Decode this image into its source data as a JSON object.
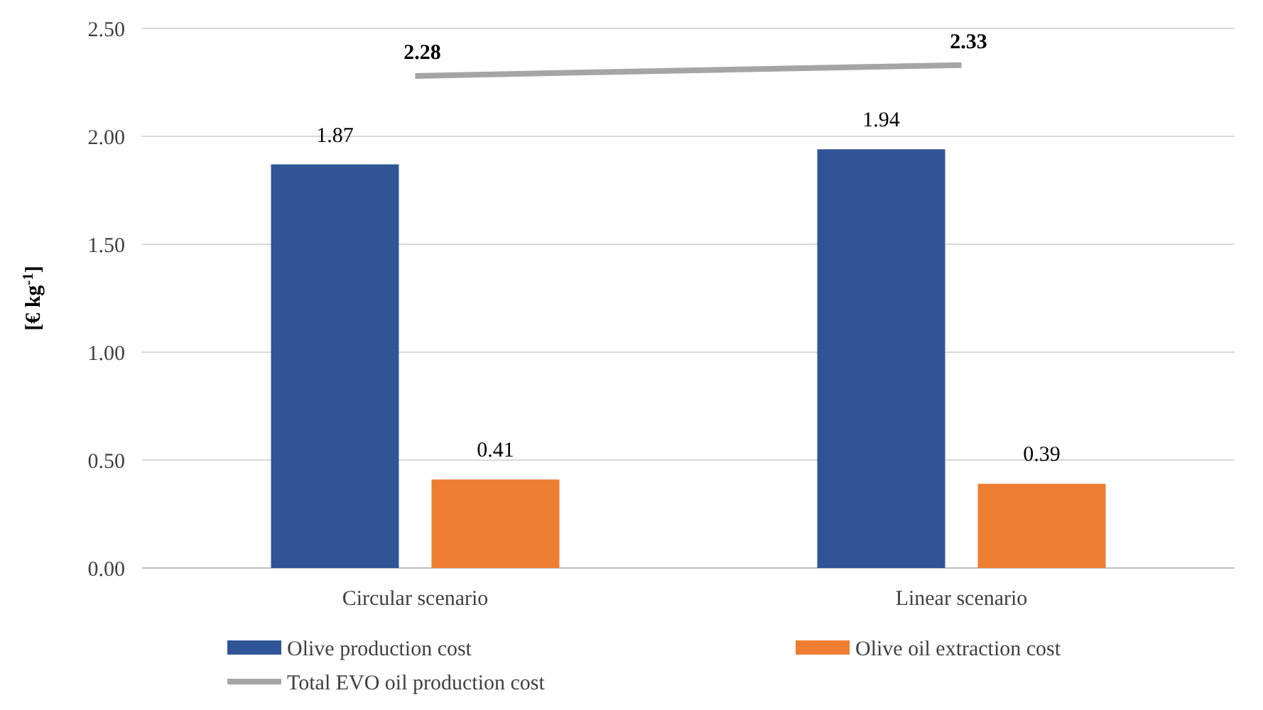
{
  "chart_data": {
    "type": "bar",
    "ylabel": "[€ kg$^{-1}$]",
    "categories": [
      "Circular scenario",
      "Linear scenario"
    ],
    "series": [
      {
        "name": "Olive production cost",
        "color": "#2f5597",
        "values": [
          1.87,
          1.94
        ]
      },
      {
        "name": "Olive oil extraction cost",
        "color": "#ed7d31",
        "values": [
          0.41,
          0.39
        ]
      },
      {
        "name": "Total EVO oil production cost",
        "type": "line",
        "color": "#a5a5a5",
        "values": [
          2.28,
          2.33
        ]
      }
    ],
    "ylim": [
      0,
      2.5
    ],
    "yticks": [
      {
        "value": 0,
        "label": "0.00"
      },
      {
        "value": 0.5,
        "label": "0.50"
      },
      {
        "value": 1,
        "label": "1.00"
      },
      {
        "value": 1.5,
        "label": "1.50"
      },
      {
        "value": 2,
        "label": "2.00"
      },
      {
        "value": 2.5,
        "label": "2.50"
      }
    ],
    "grid": "y",
    "legend": "bottom",
    "data_labels": true
  }
}
